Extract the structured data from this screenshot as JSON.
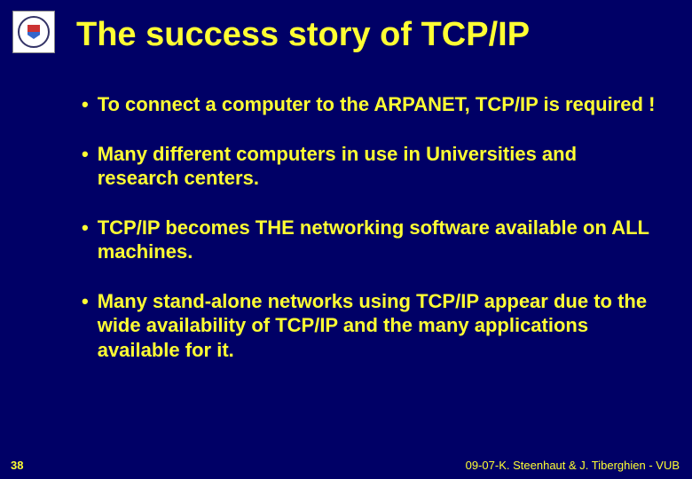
{
  "slide": {
    "background_color": "#000066",
    "text_color": "#ffff33",
    "title": "The success story of TCP/IP",
    "title_fontsize": 38,
    "bullet_fontsize": 22,
    "bullets": [
      "To connect a computer to the ARPANET, TCP/IP is required !",
      "Many different computers in use in Universities and research centers.",
      "TCP/IP becomes THE networking software available on ALL machines.",
      "Many stand-alone networks using TCP/IP appear due to the wide availability of TCP/IP and the many applications available for it."
    ],
    "slide_number": "38",
    "footer_right": "09-07-K. Steenhaut & J. Tiberghien - VUB",
    "bullet_marker": "•"
  },
  "logo": {
    "bg": "#ffffff",
    "ring_color": "#333366",
    "shield_top": "#cc3333",
    "shield_bottom": "#3366cc"
  }
}
